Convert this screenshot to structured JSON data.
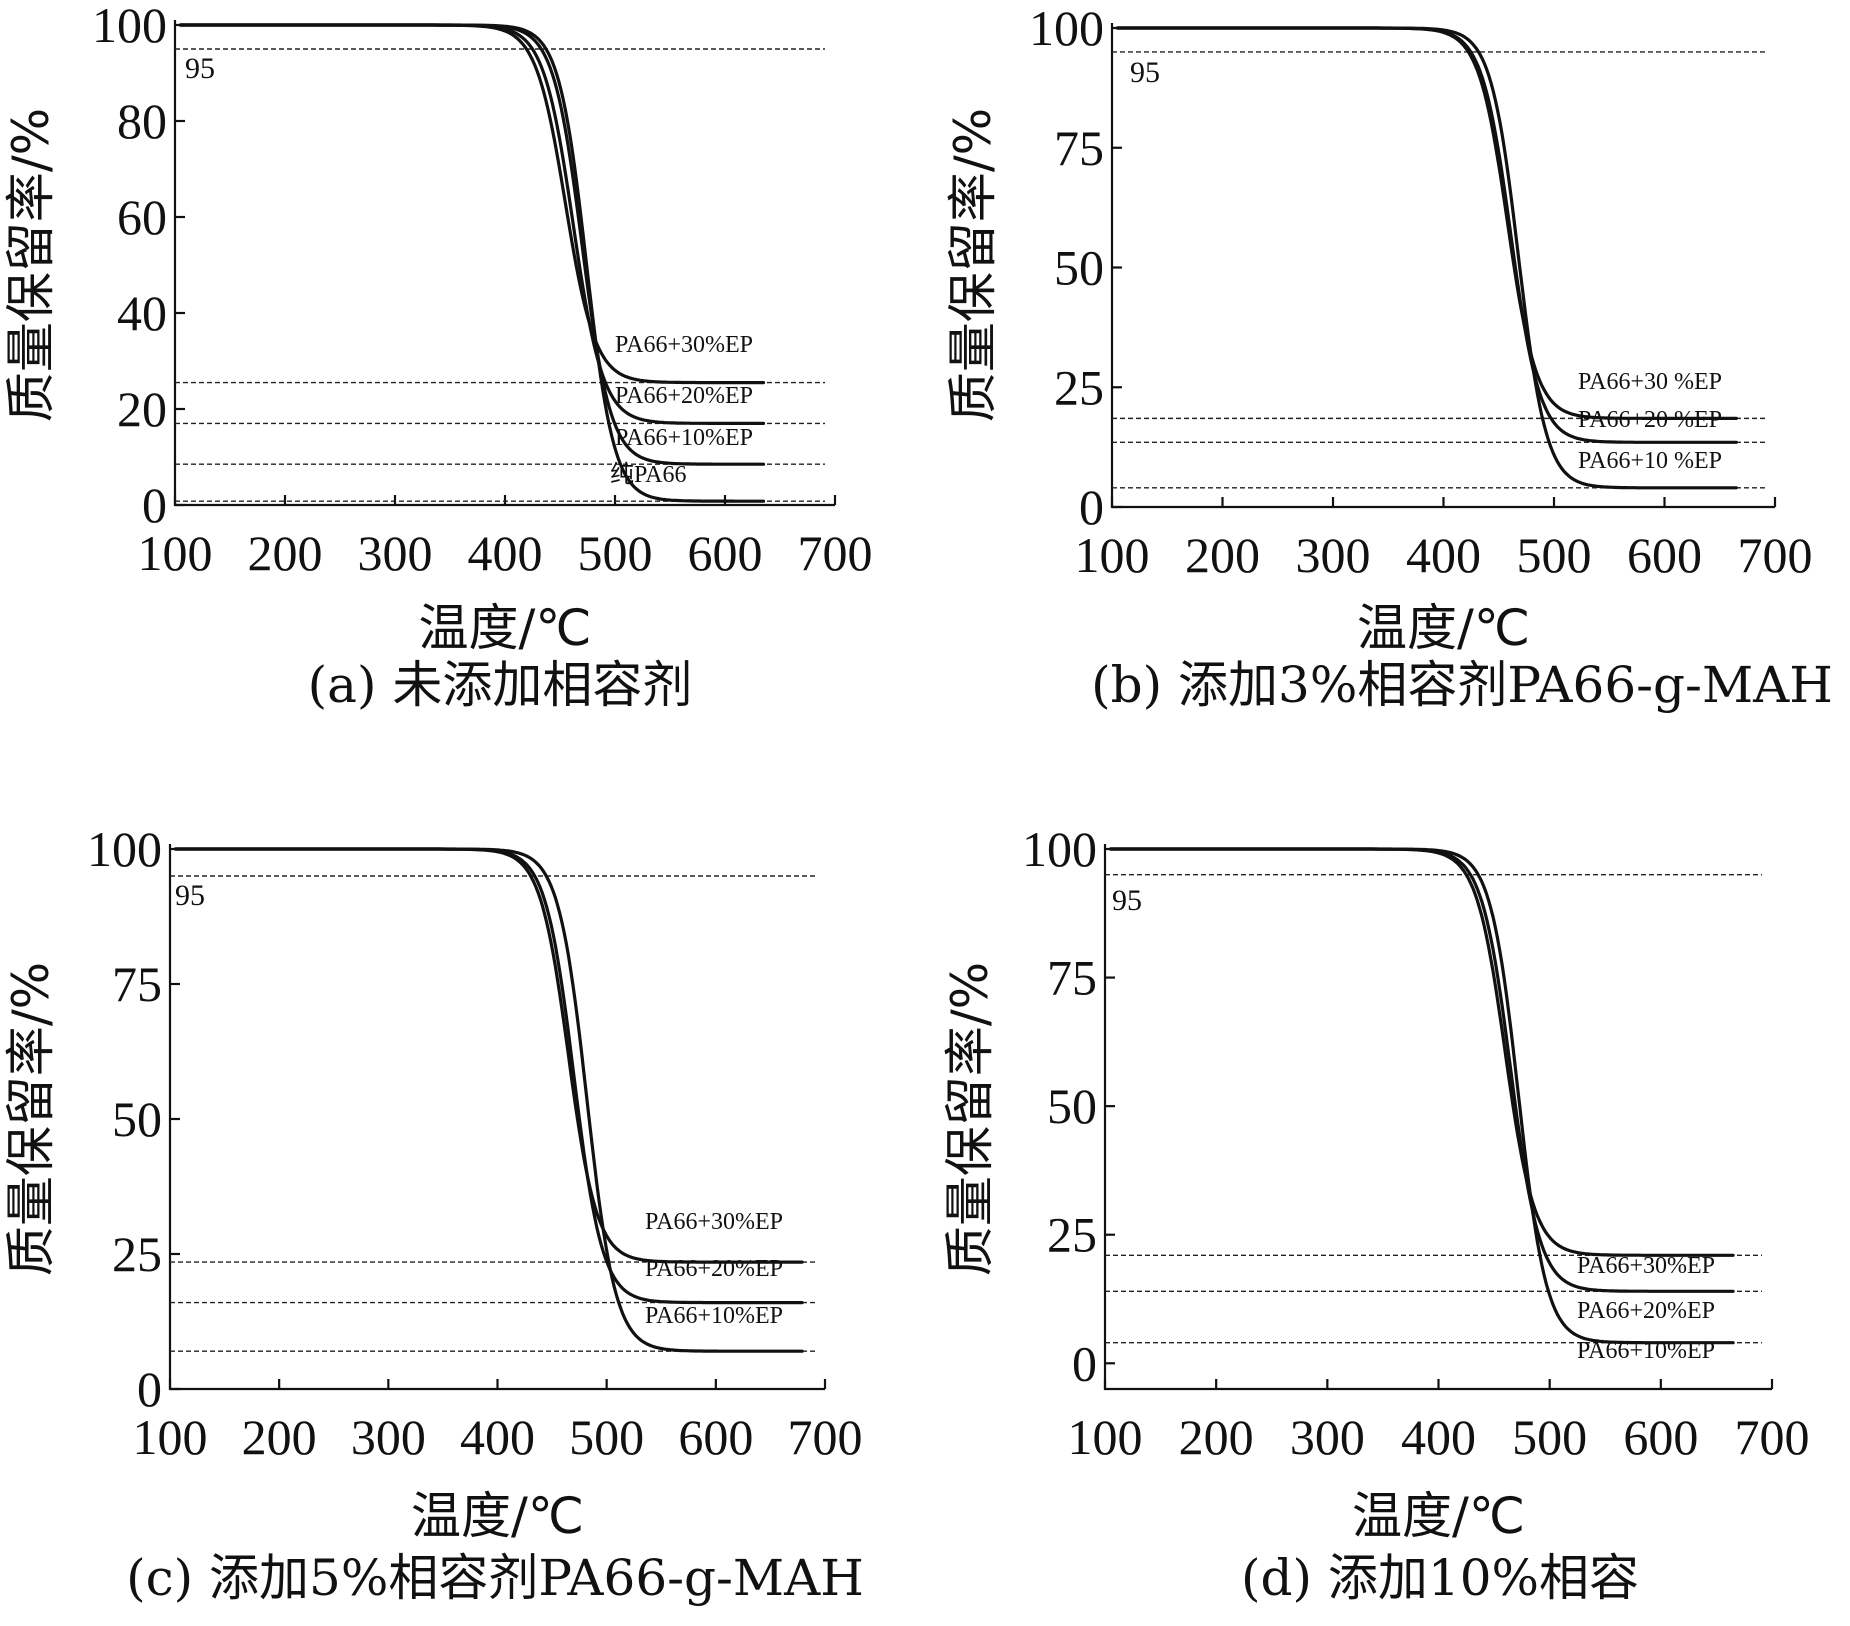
{
  "chart_data": [
    {
      "id": "a",
      "type": "line",
      "caption": "(a) 未添加相容剂",
      "xlabel": "温度/℃",
      "ylabel": "质量保留率/%",
      "xlim": [
        100,
        700
      ],
      "ylim": [
        0,
        100
      ],
      "xticks": [
        "100",
        "200",
        "300",
        "400",
        "500",
        "600",
        "700"
      ],
      "yticks": [
        0,
        20,
        40,
        60,
        80,
        100
      ],
      "ytick_labels": [
        "0",
        "20",
        "40",
        "60",
        "80",
        "100"
      ],
      "ref_lines": [
        95,
        25.5,
        17,
        8.5,
        0.8
      ],
      "ref_label": "95",
      "series": [
        {
          "name": "PA66+30%EP",
          "residue": 25.5,
          "midpoint": 455,
          "width": 13.5,
          "end_x": 635
        },
        {
          "name": "PA66+20%EP",
          "residue": 17,
          "midpoint": 462,
          "width": 13.5,
          "end_x": 635
        },
        {
          "name": "PA66+10%EP",
          "residue": 8.5,
          "midpoint": 470,
          "width": 13,
          "end_x": 635
        },
        {
          "name": "纯PA66",
          "residue": 0.8,
          "midpoint": 474,
          "width": 12.5,
          "end_x": 635
        }
      ]
    },
    {
      "id": "b",
      "type": "line",
      "caption": "(b) 添加3%相容剂PA66-g-MAH",
      "xlabel": "温度/℃",
      "ylabel": "质量保留率/%",
      "xlim": [
        100,
        700
      ],
      "ylim": [
        0,
        100
      ],
      "xticks": [
        "100",
        "200",
        "300",
        "400",
        "500",
        "600",
        "700"
      ],
      "yticks": [
        0,
        25,
        50,
        75,
        100
      ],
      "ytick_labels": [
        "0",
        "25",
        "50",
        "75",
        "100"
      ],
      "ref_lines": [
        95,
        18.5,
        13.5,
        4
      ],
      "ref_label": "95",
      "series": [
        {
          "name": "PA66+30 %EP",
          "residue": 18.5,
          "midpoint": 458,
          "width": 13,
          "end_x": 665
        },
        {
          "name": "PA66+20 %EP",
          "residue": 13.5,
          "midpoint": 461,
          "width": 13,
          "end_x": 665
        },
        {
          "name": "PA66+10 %EP",
          "residue": 4,
          "midpoint": 468,
          "width": 12.5,
          "end_x": 665
        }
      ]
    },
    {
      "id": "c",
      "type": "line",
      "caption": "(c) 添加5%相容剂PA66-g-MAH",
      "xlabel": "温度/℃",
      "ylabel": "质量保留率/%",
      "xlim": [
        100,
        700
      ],
      "ylim": [
        0,
        100
      ],
      "xticks": [
        "100",
        "200",
        "300",
        "400",
        "500",
        "600",
        "700"
      ],
      "yticks": [
        0,
        25,
        50,
        75,
        100
      ],
      "ytick_labels": [
        "0",
        "25",
        "50",
        "75",
        "100"
      ],
      "ref_lines": [
        95,
        23.5,
        16,
        7
      ],
      "ref_label": "95",
      "series": [
        {
          "name": "PA66+30%EP",
          "residue": 23.5,
          "midpoint": 465,
          "width": 13,
          "end_x": 680
        },
        {
          "name": "PA66+20%EP",
          "residue": 16,
          "midpoint": 470,
          "width": 13,
          "end_x": 680
        },
        {
          "name": "PA66+10%EP",
          "residue": 7,
          "midpoint": 482,
          "width": 13,
          "end_x": 680
        }
      ]
    },
    {
      "id": "d",
      "type": "line",
      "caption": "(d) 添加10%相容",
      "xlabel": "温度/℃",
      "ylabel": "质量保留率/%",
      "xlim": [
        100,
        700
      ],
      "ylim": [
        -5,
        100
      ],
      "xticks": [
        "100",
        "200",
        "300",
        "400",
        "500",
        "600",
        "700"
      ],
      "yticks": [
        0,
        25,
        50,
        75,
        100
      ],
      "ytick_labels": [
        "0",
        "25",
        "50",
        "75",
        "100"
      ],
      "ref_lines": [
        95,
        21,
        14,
        4
      ],
      "ref_label": "95",
      "series": [
        {
          "name": "PA66+30%EP",
          "residue": 21,
          "midpoint": 460,
          "width": 13,
          "end_x": 665
        },
        {
          "name": "PA66+20%EP",
          "residue": 14,
          "midpoint": 465,
          "width": 13,
          "end_x": 665
        },
        {
          "name": "PA66+10%EP",
          "residue": 4,
          "midpoint": 472,
          "width": 12.5,
          "end_x": 665
        }
      ]
    }
  ]
}
